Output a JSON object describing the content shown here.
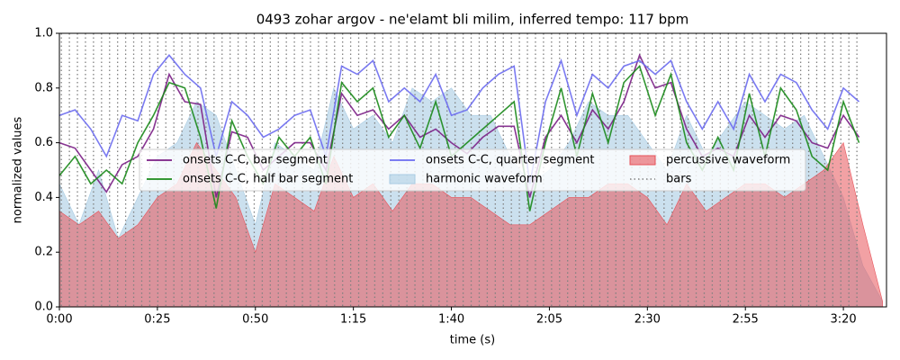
{
  "chart_data": {
    "type": "line",
    "title": "0493 zohar argov - ne'elamt bli milim, inferred tempo: 117 bpm",
    "xlabel": "time (s)",
    "ylabel": "normalized values",
    "xlim": [
      0,
      211
    ],
    "ylim": [
      0,
      1
    ],
    "xticks": [
      {
        "value": 0,
        "label": "0:00"
      },
      {
        "value": 25,
        "label": "0:25"
      },
      {
        "value": 50,
        "label": "0:50"
      },
      {
        "value": 75,
        "label": "1:15"
      },
      {
        "value": 100,
        "label": "1:40"
      },
      {
        "value": 125,
        "label": "2:05"
      },
      {
        "value": 150,
        "label": "2:30"
      },
      {
        "value": 175,
        "label": "2:55"
      },
      {
        "value": 200,
        "label": "3:20"
      }
    ],
    "yticks": [
      {
        "value": 0,
        "label": "0.0"
      },
      {
        "value": 0.2,
        "label": "0.2"
      },
      {
        "value": 0.4,
        "label": "0.4"
      },
      {
        "value": 0.6,
        "label": "0.6"
      },
      {
        "value": 0.8,
        "label": "0.8"
      },
      {
        "value": 1,
        "label": "1.0"
      }
    ],
    "x": [
      0,
      4,
      8,
      12,
      16,
      20,
      24,
      28,
      32,
      36,
      40,
      44,
      48,
      52,
      56,
      60,
      64,
      68,
      72,
      76,
      80,
      84,
      88,
      92,
      96,
      100,
      104,
      108,
      112,
      116,
      120,
      124,
      128,
      132,
      136,
      140,
      144,
      148,
      152,
      156,
      160,
      164,
      168,
      172,
      176,
      180,
      184,
      188,
      192,
      196,
      200,
      204
    ],
    "series": [
      {
        "name": "onsets C-C, bar segment",
        "color": "#7b1f86",
        "style": "line",
        "values": [
          0.6,
          0.58,
          0.5,
          0.42,
          0.52,
          0.55,
          0.65,
          0.85,
          0.75,
          0.74,
          0.4,
          0.64,
          0.62,
          0.5,
          0.55,
          0.6,
          0.6,
          0.5,
          0.78,
          0.7,
          0.72,
          0.65,
          0.7,
          0.62,
          0.65,
          0.6,
          0.56,
          0.62,
          0.66,
          0.66,
          0.4,
          0.62,
          0.7,
          0.6,
          0.72,
          0.65,
          0.75,
          0.92,
          0.8,
          0.82,
          0.65,
          0.55,
          0.58,
          0.55,
          0.7,
          0.62,
          0.7,
          0.68,
          0.6,
          0.58,
          0.7,
          0.62
        ]
      },
      {
        "name": "onsets C-C, half bar segment",
        "color": "#1a8a1a",
        "style": "line",
        "values": [
          0.48,
          0.55,
          0.45,
          0.5,
          0.45,
          0.6,
          0.7,
          0.82,
          0.8,
          0.62,
          0.36,
          0.68,
          0.55,
          0.45,
          0.62,
          0.55,
          0.62,
          0.45,
          0.82,
          0.75,
          0.8,
          0.62,
          0.7,
          0.58,
          0.75,
          0.55,
          0.6,
          0.65,
          0.7,
          0.75,
          0.35,
          0.6,
          0.8,
          0.55,
          0.78,
          0.6,
          0.82,
          0.88,
          0.7,
          0.85,
          0.6,
          0.5,
          0.62,
          0.5,
          0.78,
          0.55,
          0.8,
          0.72,
          0.55,
          0.5,
          0.75,
          0.6
        ]
      },
      {
        "name": "onsets C-C, quarter segment",
        "color": "#6b6bf0",
        "style": "line",
        "values": [
          0.7,
          0.72,
          0.65,
          0.55,
          0.7,
          0.68,
          0.85,
          0.92,
          0.85,
          0.8,
          0.55,
          0.75,
          0.7,
          0.62,
          0.65,
          0.7,
          0.72,
          0.55,
          0.88,
          0.85,
          0.9,
          0.75,
          0.8,
          0.75,
          0.85,
          0.7,
          0.72,
          0.8,
          0.85,
          0.88,
          0.45,
          0.75,
          0.9,
          0.7,
          0.85,
          0.8,
          0.88,
          0.9,
          0.85,
          0.9,
          0.75,
          0.65,
          0.75,
          0.65,
          0.85,
          0.75,
          0.85,
          0.82,
          0.72,
          0.65,
          0.8,
          0.75
        ]
      },
      {
        "name": "harmonic waveform",
        "color": "#a9cce3",
        "style": "area",
        "x": [
          0,
          5,
          10,
          15,
          20,
          25,
          30,
          35,
          40,
          45,
          50,
          55,
          60,
          65,
          70,
          75,
          80,
          85,
          90,
          95,
          100,
          105,
          110,
          115,
          120,
          125,
          130,
          135,
          140,
          145,
          150,
          155,
          160,
          165,
          170,
          175,
          180,
          185,
          190,
          195,
          200,
          205,
          210
        ],
        "values": [
          0.45,
          0.3,
          0.5,
          0.25,
          0.4,
          0.55,
          0.6,
          0.75,
          0.7,
          0.5,
          0.3,
          0.6,
          0.55,
          0.5,
          0.8,
          0.65,
          0.7,
          0.6,
          0.8,
          0.75,
          0.8,
          0.7,
          0.7,
          0.55,
          0.45,
          0.5,
          0.6,
          0.75,
          0.7,
          0.7,
          0.6,
          0.5,
          0.7,
          0.55,
          0.65,
          0.75,
          0.7,
          0.65,
          0.7,
          0.55,
          0.4,
          0.15,
          0.02
        ]
      },
      {
        "name": "percussive waveform",
        "color": "#e8535a",
        "style": "area",
        "x": [
          0,
          5,
          10,
          15,
          20,
          25,
          30,
          35,
          40,
          45,
          50,
          55,
          60,
          65,
          70,
          75,
          80,
          85,
          90,
          95,
          100,
          105,
          110,
          115,
          120,
          125,
          130,
          135,
          140,
          145,
          150,
          155,
          160,
          165,
          170,
          175,
          180,
          185,
          190,
          195,
          200,
          205,
          210
        ],
        "values": [
          0.35,
          0.3,
          0.35,
          0.25,
          0.3,
          0.4,
          0.45,
          0.6,
          0.5,
          0.4,
          0.2,
          0.45,
          0.4,
          0.35,
          0.55,
          0.4,
          0.45,
          0.35,
          0.45,
          0.45,
          0.4,
          0.4,
          0.35,
          0.3,
          0.3,
          0.35,
          0.4,
          0.4,
          0.45,
          0.45,
          0.4,
          0.3,
          0.45,
          0.35,
          0.4,
          0.45,
          0.45,
          0.4,
          0.45,
          0.5,
          0.6,
          0.3,
          0.02
        ]
      },
      {
        "name": "bars",
        "color": "#808080",
        "style": "vlines",
        "x": [
          0.5,
          2.55,
          4.6,
          6.65,
          8.7,
          10.75,
          12.8,
          14.85,
          16.9,
          18.95,
          21,
          23.05,
          25.1,
          27.15,
          29.2,
          31.25,
          33.3,
          35.35,
          37.4,
          39.45,
          41.5,
          43.55,
          45.6,
          47.65,
          49.7,
          51.75,
          53.8,
          55.85,
          57.9,
          59.95,
          62,
          64.05,
          66.1,
          68.15,
          70.2,
          72.25,
          74.3,
          76.35,
          78.4,
          80.45,
          82.5,
          84.55,
          86.6,
          88.65,
          90.7,
          92.75,
          94.8,
          96.85,
          98.9,
          100.95,
          103,
          105.05,
          107.1,
          109.15,
          111.2,
          113.25,
          115.3,
          117.35,
          119.4,
          121.45,
          123.5,
          125.55,
          127.6,
          129.65,
          131.7,
          133.75,
          135.8,
          137.85,
          139.9,
          141.95,
          144,
          146.05,
          148.1,
          150.15,
          152.2,
          154.25,
          156.3,
          158.35,
          160.4,
          162.45,
          164.5,
          166.55,
          168.6,
          170.65,
          172.7,
          174.75,
          176.8,
          178.85,
          180.9,
          182.95,
          185,
          187.05,
          189.1,
          191.15,
          193.2,
          195.25,
          197.3,
          199.35,
          201.4,
          203.45
        ]
      }
    ]
  }
}
